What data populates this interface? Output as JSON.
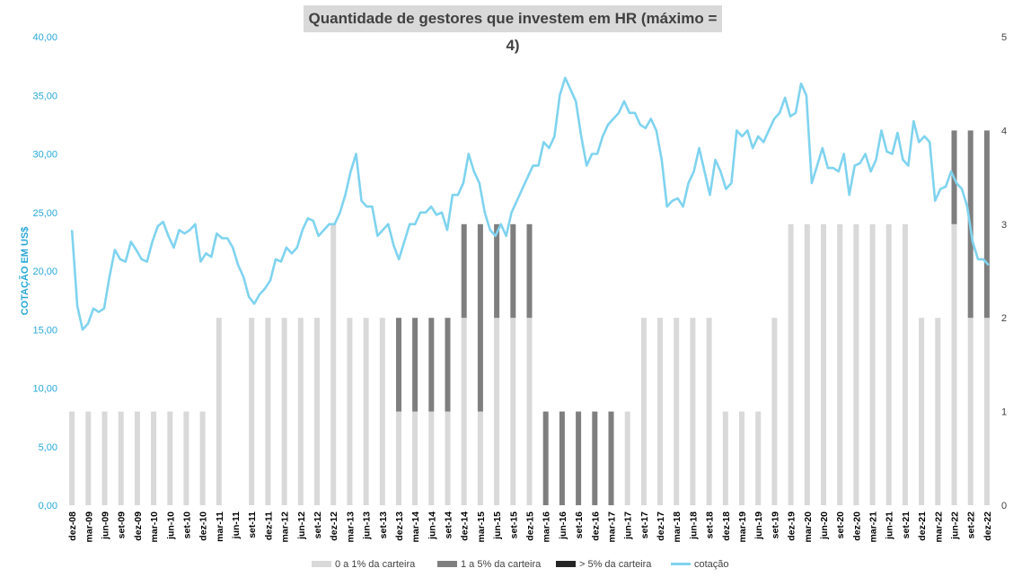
{
  "colors": {
    "light_bar": "#d9d9d9",
    "mid_bar": "#7f7f7f",
    "dark_bar": "#262626",
    "line": "#7fd3ef",
    "title_bg": "#d9d9d9",
    "axis_text_left": "#29a8d6"
  },
  "chart_data": {
    "type": "bar+line",
    "title": "Quantidade de gestores que investem em HR (máximo = 4)",
    "ylabel_left": "COTAÇÃO EM US$",
    "ylabel_right": "",
    "ylim_left": [
      0,
      40
    ],
    "ylim_right": [
      0,
      5
    ],
    "yticks_left": [
      "0,00",
      "5,00",
      "10,00",
      "15,00",
      "20,00",
      "25,00",
      "30,00",
      "35,00",
      "40,00"
    ],
    "yticks_right": [
      "0",
      "1",
      "2",
      "3",
      "4",
      "5"
    ],
    "x_tick_labels": [
      "dez-08",
      "mar-09",
      "jun-09",
      "set-09",
      "dez-09",
      "mar-10",
      "jun-10",
      "set-10",
      "dez-10",
      "mar-11",
      "jun-11",
      "set-11",
      "dez-11",
      "mar-12",
      "jun-12",
      "set-12",
      "dez-12",
      "mar-13",
      "jun-13",
      "set-13",
      "dez-13",
      "mar-14",
      "jun-14",
      "set-14",
      "dez-14",
      "mar-15",
      "jun-15",
      "set-15",
      "dez-15",
      "mar-16",
      "jun-16",
      "set-16",
      "dez-16",
      "mar-17",
      "jun-17",
      "set-17",
      "dez-17",
      "mar-18",
      "jun-18",
      "set-18",
      "dez-18",
      "mar-19",
      "jun-19",
      "set-19",
      "dez-19",
      "mar-20",
      "jun-20",
      "set-20",
      "dez-20",
      "mar-21",
      "jun-21",
      "set-21",
      "dez-21",
      "mar-22",
      "jun-22",
      "set-22",
      "dez-22"
    ],
    "bar_series": [
      {
        "name": "0 a 1% da carteira",
        "values": [
          1,
          1,
          1,
          1,
          1,
          1,
          1,
          1,
          1,
          2,
          0,
          2,
          2,
          2,
          2,
          2,
          3,
          2,
          2,
          2,
          1,
          1,
          1,
          1,
          2,
          1,
          2,
          2,
          2,
          0,
          0,
          0,
          0,
          0,
          1,
          2,
          2,
          2,
          2,
          2,
          1,
          1,
          1,
          2,
          3,
          3,
          3,
          3,
          3,
          3,
          3,
          3,
          2,
          2,
          3,
          2,
          2
        ]
      },
      {
        "name": "1 a 5% da carteira",
        "values": [
          0,
          0,
          0,
          0,
          0,
          0,
          0,
          0,
          0,
          0,
          0,
          0,
          0,
          0,
          0,
          0,
          0,
          0,
          0,
          0,
          1,
          1,
          1,
          1,
          1,
          2,
          1,
          1,
          1,
          1,
          1,
          1,
          1,
          1,
          0,
          0,
          0,
          0,
          0,
          0,
          0,
          0,
          0,
          0,
          0,
          0,
          0,
          0,
          0,
          0,
          0,
          0,
          0,
          0,
          1,
          2,
          2
        ]
      },
      {
        "name": "> 5% da carteira",
        "values": [
          0,
          0,
          0,
          0,
          0,
          0,
          0,
          0,
          0,
          0,
          0,
          0,
          0,
          0,
          0,
          0,
          0,
          0,
          0,
          0,
          0,
          0,
          0,
          0,
          0,
          0,
          0,
          0,
          0,
          0,
          0,
          0,
          0,
          0,
          0,
          0,
          0,
          0,
          0,
          0,
          0,
          0,
          0,
          0,
          0,
          0,
          0,
          0,
          0,
          0,
          0,
          0,
          0,
          0,
          0,
          0,
          0
        ]
      }
    ],
    "line_series": {
      "name": "cotação",
      "values": [
        23.5,
        17.0,
        15.0,
        15.5,
        16.8,
        16.5,
        16.8,
        19.5,
        21.8,
        21.0,
        20.8,
        22.5,
        21.8,
        21.0,
        20.8,
        22.5,
        23.8,
        24.2,
        23.0,
        22.0,
        23.5,
        23.2,
        23.5,
        24.0,
        20.8,
        21.5,
        21.2,
        23.2,
        22.8,
        22.8,
        22.0,
        20.5,
        19.5,
        17.8,
        17.2,
        18.0,
        18.5,
        19.2,
        21.0,
        20.8,
        22.0,
        21.5,
        22.0,
        23.5,
        24.5,
        24.3,
        23.0,
        23.5,
        24.0,
        24.0,
        25.0,
        26.5,
        28.5,
        30.0,
        26.0,
        25.5,
        25.5,
        23.0,
        23.5,
        24.0,
        22.2,
        21.0,
        22.5,
        24.0,
        24.0,
        25.0,
        25.0,
        25.5,
        24.8,
        25.0,
        23.5,
        26.5,
        26.5,
        27.5,
        30.0,
        28.5,
        27.5,
        25.0,
        23.5,
        23.0,
        24.0,
        23.0,
        25.0,
        26.0,
        27.0,
        28.0,
        29.0,
        29.0,
        31.0,
        30.5,
        31.5,
        35.0,
        36.5,
        35.5,
        34.5,
        31.5,
        29.0,
        30.0,
        30.0,
        31.5,
        32.5,
        33.0,
        33.5,
        34.5,
        33.5,
        33.5,
        32.5,
        32.2,
        33.0,
        32.0,
        29.5,
        25.5,
        26.0,
        26.2,
        25.5,
        27.5,
        28.5,
        30.5,
        28.5,
        26.5,
        29.5,
        28.5,
        27.0,
        27.5,
        32.0,
        31.5,
        32.0,
        30.5,
        31.5,
        31.0,
        32.0,
        33.0,
        33.5,
        34.8,
        33.2,
        33.5,
        36.0,
        35.0,
        27.5,
        29.0,
        30.5,
        28.8,
        28.8,
        28.5,
        30.0,
        26.5,
        29.0,
        29.2,
        30.0,
        28.5,
        29.5,
        32.0,
        30.2,
        30.0,
        31.8,
        29.5,
        29.0,
        32.8,
        31.0,
        31.5,
        31.0,
        26.0,
        27.0,
        27.2,
        28.5,
        27.5,
        27.0,
        25.5,
        22.5,
        21.0,
        21.0,
        20.5
      ]
    },
    "legend": [
      {
        "label": "0 a 1% da carteira",
        "color_key": "light_bar",
        "kind": "bar"
      },
      {
        "label": "1 a 5% da carteira",
        "color_key": "mid_bar",
        "kind": "bar"
      },
      {
        "label": "> 5% da carteira",
        "color_key": "dark_bar",
        "kind": "bar"
      },
      {
        "label": "cotação",
        "color_key": "line",
        "kind": "line"
      }
    ],
    "legend_position": "bottom",
    "grid": false
  }
}
